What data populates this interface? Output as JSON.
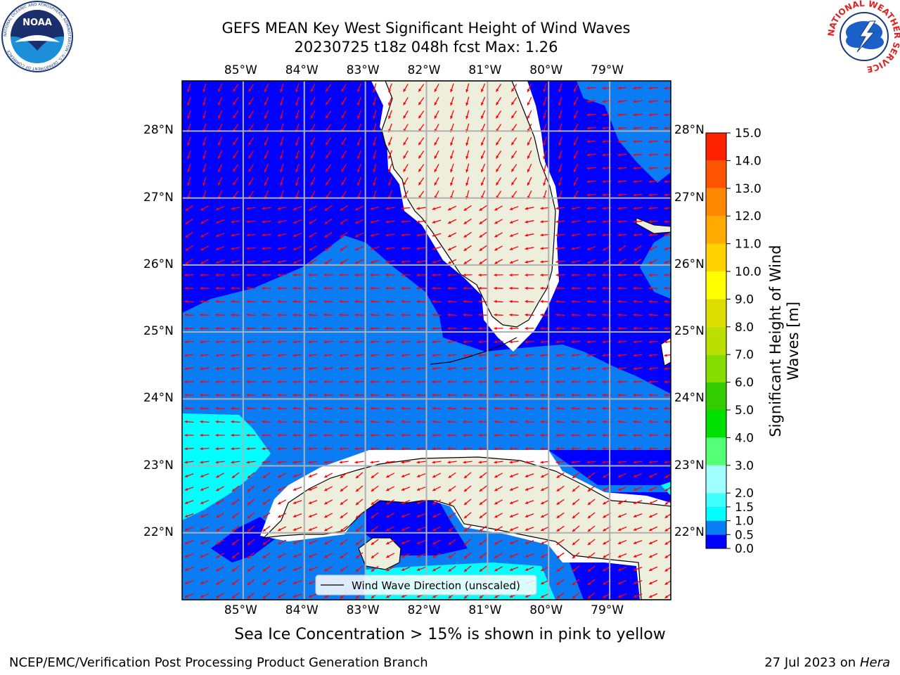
{
  "title": {
    "line1": "GEFS MEAN Key West Significant Height of Wind Waves",
    "line2": "20230725 t18z 048h fcst   Max: 1.26"
  },
  "map": {
    "lon_range": [
      -86.0,
      -78.0
    ],
    "lat_range": [
      21.0,
      28.75
    ],
    "lon_ticks": [
      "85°W",
      "84°W",
      "83°W",
      "82°W",
      "81°W",
      "80°W",
      "79°W"
    ],
    "lat_ticks": [
      "28°N",
      "27°N",
      "26°N",
      "25°N",
      "24°N",
      "23°N",
      "22°N"
    ],
    "legend_label": "Wind Wave Direction (unscaled)",
    "arrow_color": "#ff0000",
    "land_color": "#eeeedd",
    "grid": true
  },
  "colorbar": {
    "title": "Significant Height of Wind Waves [m]",
    "levels": [
      "0.0",
      "0.5",
      "1.0",
      "1.5",
      "2.0",
      "3.0",
      "4.0",
      "5.0",
      "6.0",
      "7.0",
      "8.0",
      "9.0",
      "10.0",
      "11.0",
      "12.0",
      "13.0",
      "14.0",
      "15.0"
    ],
    "colors": [
      "#0000ff",
      "#0a7df5",
      "#00ffff",
      "#40ffff",
      "#a0ffff",
      "#55ff77",
      "#00e000",
      "#33cc00",
      "#88dd00",
      "#bbe000",
      "#dddd00",
      "#ffff00",
      "#ffd200",
      "#ffaa00",
      "#ff8800",
      "#ff5500",
      "#ff2200"
    ]
  },
  "logos": {
    "noaa": {
      "text": "NOAA",
      "ring_text": "NATIONAL OCEANIC AND ATMOSPHERIC ADMINISTRATION · U.S. DEPARTMENT OF COMMERCE"
    },
    "nws": {
      "ring_text": "NATIONAL WEATHER SERVICE"
    }
  },
  "footer": {
    "note": "Sea Ice Concentration > 15% is shown in pink to yellow",
    "left": "NCEP/EMC/Verification Post Processing Product Generation Branch",
    "right_date": "27 Jul 2023 on",
    "right_host": "Hera"
  }
}
